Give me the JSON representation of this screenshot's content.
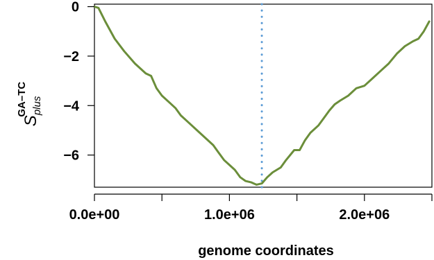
{
  "chart_data": {
    "type": "line",
    "title": "",
    "xlabel": "genome coordinates",
    "ylabel": {
      "main": "S",
      "subscript": "plus",
      "superscript": "GA–TC"
    },
    "xlim": [
      0,
      2500000
    ],
    "ylim": [
      -7.3,
      0.1
    ],
    "x_ticks": [
      0,
      500000,
      1000000,
      1500000,
      2000000,
      2500000
    ],
    "x_tick_labels": [
      "0.0e+00",
      "",
      "1.0e+06",
      "",
      "2.0e+06",
      ""
    ],
    "y_ticks": [
      0,
      -2,
      -4,
      -6
    ],
    "y_tick_labels": [
      "0",
      "−2",
      "−4",
      "−6"
    ],
    "vline": {
      "x": 1240000,
      "color": "#5b9bd5",
      "style": "dotted"
    },
    "series": [
      {
        "color": "#6b8e3a",
        "x": [
          0,
          30000,
          80000,
          150000,
          220000,
          300000,
          380000,
          420000,
          460000,
          500000,
          560000,
          600000,
          640000,
          700000,
          760000,
          820000,
          880000,
          920000,
          960000,
          1000000,
          1040000,
          1080000,
          1120000,
          1160000,
          1200000,
          1240000,
          1280000,
          1320000,
          1380000,
          1420000,
          1480000,
          1520000,
          1560000,
          1600000,
          1660000,
          1700000,
          1740000,
          1780000,
          1820000,
          1880000,
          1940000,
          2000000,
          2060000,
          2120000,
          2180000,
          2240000,
          2300000,
          2360000,
          2400000,
          2440000,
          2480000
        ],
        "y": [
          0,
          -0.05,
          -0.6,
          -1.3,
          -1.8,
          -2.3,
          -2.7,
          -2.8,
          -3.3,
          -3.6,
          -3.9,
          -4.1,
          -4.4,
          -4.7,
          -5.0,
          -5.3,
          -5.6,
          -5.9,
          -6.2,
          -6.4,
          -6.6,
          -6.9,
          -7.05,
          -7.1,
          -7.2,
          -7.15,
          -6.9,
          -6.7,
          -6.5,
          -6.2,
          -5.8,
          -5.8,
          -5.4,
          -5.1,
          -4.8,
          -4.5,
          -4.2,
          -3.95,
          -3.8,
          -3.6,
          -3.3,
          -3.2,
          -2.9,
          -2.6,
          -2.3,
          -1.9,
          -1.6,
          -1.4,
          -1.3,
          -1.0,
          -0.6
        ]
      }
    ]
  }
}
